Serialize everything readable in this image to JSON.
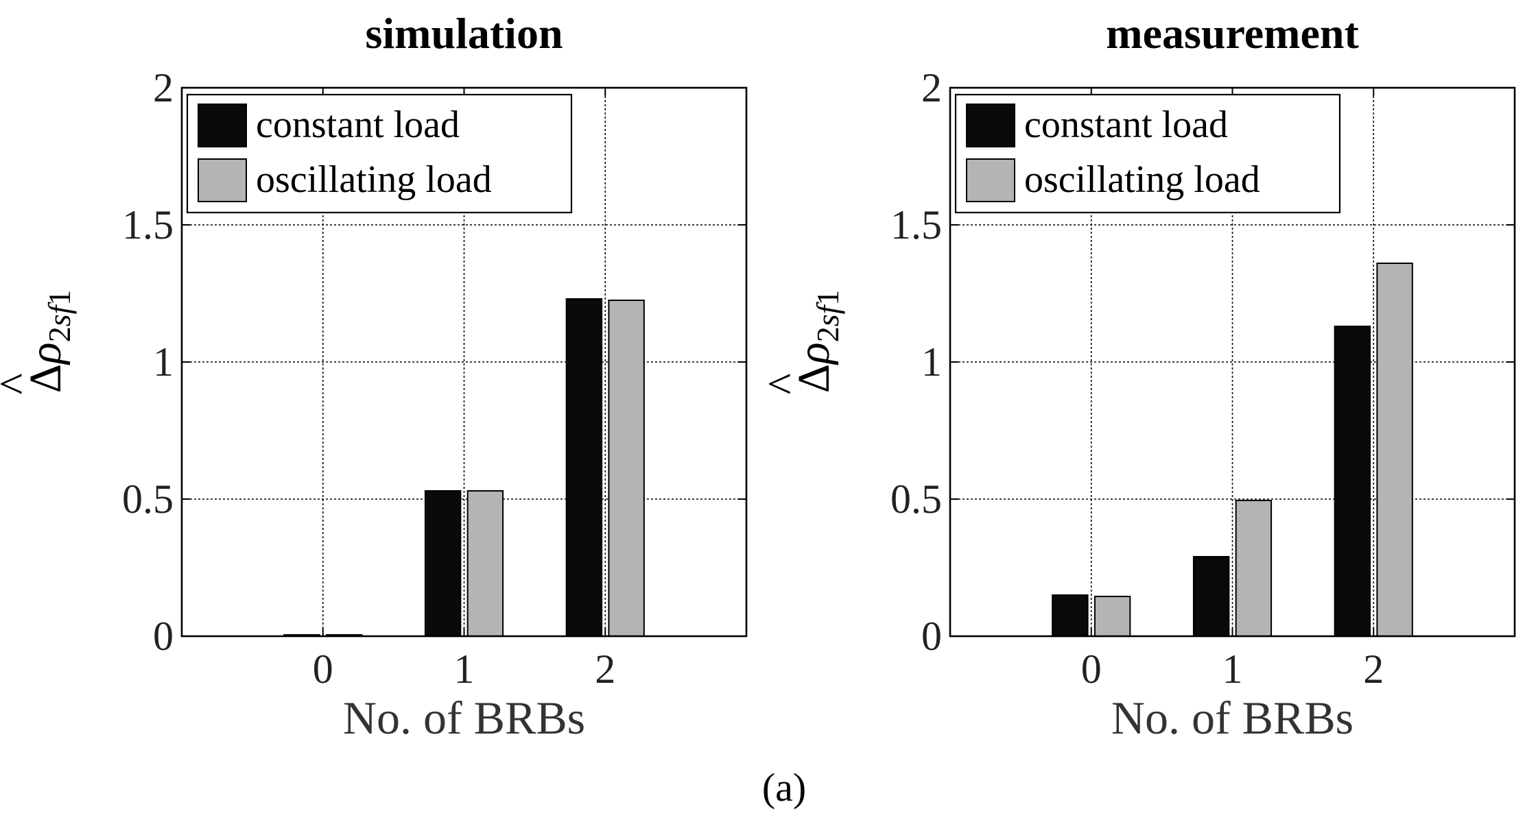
{
  "figure": {
    "caption": "(a)"
  },
  "colors": {
    "constant": "#0a0a0a",
    "oscillating": "#b4b4b4",
    "bar_edge": "#000000"
  },
  "ylabel": {
    "prefix": "Δ",
    "symbol": "ρ",
    "hat": "^",
    "subscript_a": "2",
    "subscript_b": "sf",
    "subscript_c": "1"
  },
  "chart_data": [
    {
      "type": "bar",
      "title": "simulation",
      "xlabel": "No. of BRBs",
      "ylabel": "Δρ̂2sf1",
      "categories": [
        "0",
        "1",
        "2"
      ],
      "ylim": [
        0,
        2
      ],
      "xlim": [
        -1,
        3
      ],
      "yticks": [
        0,
        0.5,
        1,
        1.5,
        2
      ],
      "ytick_labels": [
        "0",
        "0.5",
        "1",
        "1.5",
        "2"
      ],
      "grid": true,
      "legend_position": "top-left",
      "series": [
        {
          "name": "constant load",
          "values": [
            0.005,
            0.53,
            1.23
          ]
        },
        {
          "name": "oscillating load",
          "values": [
            0.005,
            0.53,
            1.225
          ]
        }
      ]
    },
    {
      "type": "bar",
      "title": "measurement",
      "xlabel": "No. of BRBs",
      "ylabel": "Δρ̂2sf1",
      "categories": [
        "0",
        "1",
        "2"
      ],
      "ylim": [
        0,
        2
      ],
      "xlim": [
        -1,
        3
      ],
      "yticks": [
        0,
        0.5,
        1,
        1.5,
        2
      ],
      "ytick_labels": [
        "0",
        "0.5",
        "1",
        "1.5",
        "2"
      ],
      "grid": true,
      "legend_position": "top-left",
      "series": [
        {
          "name": "constant load",
          "values": [
            0.15,
            0.29,
            1.13
          ]
        },
        {
          "name": "oscillating load",
          "values": [
            0.145,
            0.495,
            1.36
          ]
        }
      ]
    }
  ]
}
